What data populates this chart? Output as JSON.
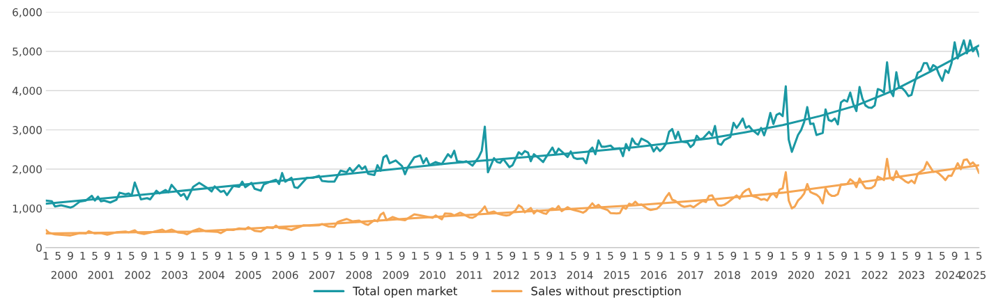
{
  "chart_data": {
    "type": "line",
    "x": [
      "2000-01",
      "2000-03",
      "2000-04",
      "2000-06",
      "2000-09",
      "2000-10",
      "2000-12",
      "2001-02",
      "2001-04",
      "2001-05",
      "2001-06",
      "2001-07",
      "2001-08",
      "2001-10",
      "2001-12",
      "2002-01",
      "2002-03",
      "2002-04",
      "2002-05",
      "2002-06",
      "2002-08",
      "2002-10",
      "2002-11",
      "2003-01",
      "2003-02",
      "2003-04",
      "2003-05",
      "2003-06",
      "2003-08",
      "2003-09",
      "2003-10",
      "2003-11",
      "2004-01",
      "2004-03",
      "2004-06",
      "2004-07",
      "2004-08",
      "2004-10",
      "2004-11",
      "2004-12",
      "2005-02",
      "2005-04",
      "2005-05",
      "2005-06",
      "2005-08",
      "2005-09",
      "2005-11",
      "2005-12",
      "2006-02",
      "2006-04",
      "2006-05",
      "2006-06",
      "2006-07",
      "2006-09",
      "2006-10",
      "2006-11",
      "2006-12",
      "2007-02",
      "2007-04",
      "2007-06",
      "2007-07",
      "2007-09",
      "2007-11",
      "2007-12",
      "2008-01",
      "2008-03",
      "2008-04",
      "2008-05",
      "2008-07",
      "2008-08",
      "2008-09",
      "2008-10",
      "2008-12",
      "2009-01",
      "2009-02",
      "2009-03",
      "2009-04",
      "2009-05",
      "2009-07",
      "2009-09",
      "2009-10",
      "2009-11",
      "2010-01",
      "2010-03",
      "2010-04",
      "2010-05",
      "2010-06",
      "2010-08",
      "2010-09",
      "2010-10",
      "2010-12",
      "2011-01",
      "2011-02",
      "2011-03",
      "2011-05",
      "2011-06",
      "2011-08",
      "2011-10",
      "2011-11",
      "2011-12",
      "2012-01",
      "2012-03",
      "2012-04",
      "2012-05",
      "2012-06",
      "2012-08",
      "2012-09",
      "2012-11",
      "2012-12",
      "2013-01",
      "2013-02",
      "2013-03",
      "2013-04",
      "2013-06",
      "2013-07",
      "2013-08",
      "2013-10",
      "2013-11",
      "2013-12",
      "2014-01",
      "2014-03",
      "2014-04",
      "2014-05",
      "2014-06",
      "2014-08",
      "2014-09",
      "2014-10",
      "2014-11",
      "2014-12",
      "2015-01",
      "2015-02",
      "2015-03",
      "2015-05",
      "2015-06",
      "2015-08",
      "2015-09",
      "2015-10",
      "2015-11",
      "2015-12",
      "2016-01",
      "2016-02",
      "2016-03",
      "2016-05",
      "2016-06",
      "2016-07",
      "2016-08",
      "2016-09",
      "2016-10",
      "2016-11",
      "2016-12",
      "2017-01",
      "2017-02",
      "2017-03",
      "2017-04",
      "2017-06",
      "2017-07",
      "2017-08",
      "2017-09",
      "2017-10",
      "2017-11",
      "2018-01",
      "2018-02",
      "2018-03",
      "2018-04",
      "2018-05",
      "2018-06",
      "2018-08",
      "2018-09",
      "2018-10",
      "2018-11",
      "2018-12",
      "2019-01",
      "2019-02",
      "2019-03",
      "2019-05",
      "2019-06",
      "2019-07",
      "2019-08",
      "2019-09",
      "2019-10",
      "2019-11",
      "2019-12",
      "2020-01",
      "2020-02",
      "2020-03",
      "2020-04",
      "2020-06",
      "2020-07",
      "2020-08",
      "2020-09",
      "2020-10",
      "2020-11",
      "2020-12",
      "2021-02",
      "2021-03",
      "2021-04",
      "2021-05",
      "2021-06",
      "2021-07",
      "2021-08",
      "2021-09",
      "2021-10",
      "2021-11",
      "2021-12",
      "2022-01",
      "2022-02",
      "2022-03",
      "2022-04",
      "2022-05",
      "2022-06",
      "2022-07",
      "2022-08",
      "2022-09",
      "2022-10",
      "2022-11",
      "2022-12",
      "2023-01",
      "2023-02",
      "2023-03",
      "2023-04",
      "2023-05",
      "2023-06",
      "2023-07",
      "2023-08",
      "2023-09",
      "2023-10",
      "2023-11",
      "2023-12",
      "2024-01",
      "2024-02",
      "2024-03",
      "2024-04",
      "2024-05",
      "2024-06",
      "2024-07",
      "2024-08",
      "2024-09",
      "2024-10",
      "2024-11",
      "2024-12",
      "2025-01",
      "2025-02",
      "2025-03",
      "2025-04",
      "2025-05"
    ],
    "series": [
      {
        "name": "Total open market",
        "color": "#1a98a3",
        "values": [
          1200,
          1180,
          1050,
          1080,
          1020,
          1050,
          1170,
          1200,
          1320,
          1200,
          1300,
          1180,
          1200,
          1150,
          1220,
          1400,
          1360,
          1380,
          1330,
          1660,
          1230,
          1260,
          1230,
          1450,
          1380,
          1470,
          1410,
          1600,
          1410,
          1320,
          1370,
          1230,
          1550,
          1650,
          1500,
          1430,
          1560,
          1420,
          1450,
          1340,
          1570,
          1550,
          1680,
          1540,
          1650,
          1500,
          1450,
          1610,
          1680,
          1730,
          1620,
          1900,
          1680,
          1780,
          1540,
          1520,
          1600,
          1780,
          1780,
          1830,
          1700,
          1680,
          1680,
          1820,
          1960,
          1920,
          2030,
          1930,
          2100,
          2000,
          2070,
          1880,
          1850,
          2100,
          1960,
          2300,
          2350,
          2150,
          2220,
          2080,
          1870,
          2060,
          2300,
          2350,
          2150,
          2280,
          2100,
          2180,
          2150,
          2130,
          2380,
          2300,
          2470,
          2200,
          2180,
          2200,
          2090,
          2300,
          2470,
          3080,
          1920,
          2280,
          2180,
          2160,
          2260,
          2050,
          2100,
          2430,
          2370,
          2460,
          2420,
          2200,
          2380,
          2250,
          2180,
          2310,
          2550,
          2380,
          2520,
          2450,
          2310,
          2450,
          2290,
          2260,
          2270,
          2150,
          2460,
          2550,
          2380,
          2730,
          2570,
          2570,
          2600,
          2520,
          2530,
          2330,
          2640,
          2480,
          2780,
          2650,
          2620,
          2780,
          2700,
          2620,
          2450,
          2560,
          2460,
          2530,
          2650,
          2950,
          3020,
          2770,
          2950,
          2700,
          2680,
          2560,
          2630,
          2850,
          2760,
          2780,
          2950,
          2850,
          3100,
          2650,
          2620,
          2740,
          2820,
          3180,
          3050,
          3160,
          3290,
          3050,
          3100,
          3010,
          2880,
          3050,
          2860,
          3100,
          3430,
          3150,
          3380,
          3420,
          3350,
          4110,
          2750,
          2440,
          2870,
          2990,
          3200,
          3580,
          3150,
          3160,
          2870,
          2920,
          3520,
          3250,
          3220,
          3290,
          3140,
          3700,
          3760,
          3720,
          3950,
          3660,
          3480,
          4090,
          3800,
          3620,
          3570,
          3560,
          3620,
          4040,
          4010,
          3950,
          4720,
          4000,
          3860,
          4470,
          4070,
          4060,
          3980,
          3860,
          3890,
          4200,
          4460,
          4500,
          4700,
          4700,
          4500,
          4650,
          4600,
          4400,
          4250,
          4520,
          4450,
          4700,
          5230,
          4820,
          5050,
          5280,
          4950,
          5280,
          5000,
          5100,
          4870
        ]
      },
      {
        "name": "Sales without presctiption",
        "color": "#f5a552",
        "x": [
          "2000-01",
          "2000-02",
          "2000-04",
          "2000-07",
          "2000-09",
          "2000-12",
          "2001-02",
          "2001-03",
          "2001-05",
          "2001-07",
          "2001-09",
          "2001-12",
          "2002-03",
          "2002-04",
          "2002-06",
          "2002-07",
          "2002-09",
          "2002-12",
          "2003-03",
          "2003-04",
          "2003-06",
          "2003-08",
          "2003-10",
          "2003-11",
          "2004-01",
          "2004-03",
          "2004-05",
          "2004-07",
          "2004-09",
          "2004-10",
          "2004-12",
          "2005-02",
          "2005-04",
          "2005-06",
          "2005-07",
          "2005-09",
          "2005-11",
          "2006-01",
          "2006-03",
          "2006-04",
          "2006-05",
          "2006-07",
          "2006-09",
          "2006-10",
          "2007-01",
          "2007-03",
          "2007-06",
          "2007-07",
          "2007-09",
          "2007-11",
          "2007-12",
          "2008-01",
          "2008-03",
          "2008-05",
          "2008-07",
          "2008-09",
          "2008-10",
          "2008-12",
          "2009-01",
          "2009-02",
          "2009-03",
          "2009-04",
          "2009-06",
          "2009-08",
          "2009-10",
          "2010-01",
          "2010-03",
          "2010-05",
          "2010-07",
          "2010-08",
          "2010-10",
          "2010-11",
          "2011-01",
          "2011-02",
          "2011-04",
          "2011-07",
          "2011-08",
          "2011-09",
          "2011-11",
          "2011-12",
          "2012-01",
          "2012-03",
          "2012-04",
          "2012-06",
          "2012-07",
          "2012-08",
          "2012-10",
          "2012-11",
          "2012-12",
          "2013-01",
          "2013-03",
          "2013-04",
          "2013-05",
          "2013-07",
          "2013-08",
          "2013-09",
          "2013-10",
          "2013-11",
          "2013-12",
          "2014-01",
          "2014-03",
          "2014-04",
          "2014-05",
          "2014-07",
          "2014-08",
          "2014-09",
          "2014-11",
          "2014-12",
          "2015-01",
          "2015-02",
          "2015-04",
          "2015-05",
          "2015-07",
          "2015-08",
          "2015-09",
          "2015-10",
          "2015-11",
          "2015-12",
          "2016-01",
          "2016-02",
          "2016-03",
          "2016-05",
          "2016-06",
          "2016-08",
          "2016-09",
          "2016-10",
          "2016-11",
          "2016-12",
          "2017-01",
          "2017-02",
          "2017-04",
          "2017-05",
          "2017-07",
          "2017-08",
          "2017-10",
          "2017-11",
          "2017-12",
          "2018-01",
          "2018-02",
          "2018-03",
          "2018-04",
          "2018-05",
          "2018-06",
          "2018-07",
          "2018-09",
          "2018-10",
          "2018-11",
          "2018-12",
          "2019-01",
          "2019-02",
          "2019-03",
          "2019-05",
          "2019-06",
          "2019-07",
          "2019-08",
          "2019-09",
          "2019-10",
          "2019-11",
          "2019-12",
          "2020-01",
          "2020-02",
          "2020-03",
          "2020-04",
          "2020-05",
          "2020-06",
          "2020-07",
          "2020-08",
          "2020-09",
          "2020-10",
          "2020-11",
          "2020-12",
          "2021-01",
          "2021-02",
          "2021-03",
          "2021-04",
          "2021-05",
          "2021-06",
          "2021-07",
          "2021-08",
          "2021-09",
          "2021-10",
          "2021-11",
          "2021-12",
          "2022-01",
          "2022-02",
          "2022-03",
          "2022-04",
          "2022-05",
          "2022-06",
          "2022-07",
          "2022-08",
          "2022-09",
          "2022-10",
          "2022-11",
          "2022-12",
          "2023-01",
          "2023-02",
          "2023-03",
          "2023-04",
          "2023-05",
          "2023-06",
          "2023-07",
          "2023-08",
          "2023-09",
          "2023-10",
          "2023-11",
          "2023-12",
          "2024-01",
          "2024-02",
          "2024-03",
          "2024-04",
          "2024-05",
          "2024-06",
          "2024-07",
          "2024-08",
          "2024-09",
          "2024-10",
          "2024-11",
          "2024-12",
          "2025-01",
          "2025-02",
          "2025-03",
          "2025-04",
          "2025-05"
        ],
        "values": [
          450,
          380,
          340,
          320,
          310,
          370,
          360,
          420,
          360,
          370,
          330,
          390,
          410,
          390,
          440,
          380,
          350,
          400,
          460,
          410,
          460,
          390,
          370,
          340,
          430,
          480,
          420,
          410,
          400,
          370,
          460,
          450,
          490,
          470,
          520,
          430,
          410,
          520,
          500,
          560,
          500,
          490,
          450,
          480,
          570,
          560,
          570,
          600,
          540,
          530,
          650,
          680,
          730,
          670,
          690,
          600,
          580,
          700,
          670,
          840,
          890,
          700,
          780,
          720,
          700,
          850,
          820,
          790,
          760,
          820,
          720,
          870,
          860,
          820,
          890,
          770,
          760,
          800,
          950,
          1050,
          880,
          920,
          870,
          830,
          820,
          830,
          950,
          1080,
          1030,
          900,
          1010,
          870,
          950,
          880,
          860,
          960,
          1000,
          970,
          1060,
          930,
          1030,
          980,
          960,
          920,
          890,
          940,
          1130,
          1040,
          1090,
          1010,
          960,
          880,
          870,
          880,
          1030,
          990,
          1120,
          1090,
          1170,
          1090,
          1100,
          990,
          960,
          990,
          1060,
          1150,
          1290,
          1390,
          1220,
          1190,
          1070,
          1040,
          1070,
          1030,
          1140,
          1190,
          1160,
          1320,
          1330,
          1200,
          1080,
          1070,
          1090,
          1140,
          1270,
          1330,
          1250,
          1390,
          1460,
          1500,
          1320,
          1270,
          1220,
          1240,
          1200,
          1330,
          1380,
          1280,
          1480,
          1510,
          1920,
          1200,
          1000,
          1050,
          1200,
          1270,
          1380,
          1620,
          1420,
          1380,
          1350,
          1280,
          1130,
          1510,
          1370,
          1320,
          1320,
          1360,
          1610,
          1610,
          1620,
          1740,
          1680,
          1540,
          1760,
          1640,
          1520,
          1510,
          1520,
          1580,
          1810,
          1770,
          1720,
          2260,
          1780,
          1720,
          1950,
          1800,
          1750,
          1690,
          1650,
          1710,
          1640,
          1880,
          1940,
          1990,
          2180,
          2060,
          1930,
          1940,
          1880,
          1810,
          1720,
          1830,
          1830,
          1990,
          2150,
          2000,
          2230,
          2250,
          2120,
          2170,
          2080,
          1900
        ]
      },
      {
        "color": "#1a98a3",
        "x": [
          "2000-01",
          "2002-01",
          "2005-01",
          "2008-01",
          "2011-01",
          "2014-01",
          "2016-01",
          "2018-01",
          "2019-01",
          "2020-01",
          "2021-01",
          "2022-01",
          "2023-01",
          "2024-01",
          "2025-05"
        ],
        "values": [
          1120,
          1290,
          1570,
          1860,
          2150,
          2380,
          2560,
          2780,
          2940,
          3120,
          3350,
          3620,
          4000,
          4480,
          5150
        ]
      },
      {
        "color": "#f5a552",
        "x": [
          "2000-01",
          "2004-01",
          "2007-01",
          "2010-01",
          "2013-01",
          "2016-01",
          "2018-01",
          "2020-01",
          "2022-01",
          "2024-01",
          "2025-05"
        ],
        "values": [
          360,
          410,
          560,
          750,
          920,
          1080,
          1220,
          1400,
          1650,
          1920,
          2100
        ]
      }
    ],
    "xlim": [
      "2000-01",
      "2025-05"
    ],
    "xticks": [
      {
        "value": "2000-01",
        "label": "1"
      },
      {
        "value": "2000-05",
        "label": "5"
      },
      {
        "value": "2000-09",
        "label": "9"
      },
      {
        "value": "2001-01",
        "label": "1"
      },
      {
        "value": "2001-05",
        "label": "5"
      },
      {
        "value": "2001-09",
        "label": "9"
      },
      {
        "value": "2002-01",
        "label": "1"
      },
      {
        "value": "2002-05",
        "label": "5"
      },
      {
        "value": "2002-09",
        "label": "9"
      },
      {
        "value": "2003-01",
        "label": "1"
      },
      {
        "value": "2003-05",
        "label": "5"
      },
      {
        "value": "2003-09",
        "label": "9"
      },
      {
        "value": "2004-01",
        "label": "1"
      },
      {
        "value": "2004-05",
        "label": "5"
      },
      {
        "value": "2004-09",
        "label": "9"
      },
      {
        "value": "2005-01",
        "label": "1"
      },
      {
        "value": "2005-05",
        "label": "5"
      },
      {
        "value": "2005-09",
        "label": "9"
      },
      {
        "value": "2006-01",
        "label": "1"
      },
      {
        "value": "2006-05",
        "label": "5"
      },
      {
        "value": "2006-09",
        "label": "9"
      },
      {
        "value": "2007-01",
        "label": "1"
      },
      {
        "value": "2007-05",
        "label": "5"
      },
      {
        "value": "2007-09",
        "label": "9"
      },
      {
        "value": "2008-01",
        "label": "1"
      },
      {
        "value": "2008-05",
        "label": "5"
      },
      {
        "value": "2008-09",
        "label": "9"
      },
      {
        "value": "2009-01",
        "label": "1"
      },
      {
        "value": "2009-05",
        "label": "5"
      },
      {
        "value": "2009-09",
        "label": "9"
      },
      {
        "value": "2010-01",
        "label": "1"
      },
      {
        "value": "2010-05",
        "label": "5"
      },
      {
        "value": "2010-09",
        "label": "9"
      },
      {
        "value": "2011-01",
        "label": "1"
      },
      {
        "value": "2011-05",
        "label": "5"
      },
      {
        "value": "2011-09",
        "label": "9"
      },
      {
        "value": "2012-01",
        "label": "1"
      },
      {
        "value": "2012-05",
        "label": "5"
      },
      {
        "value": "2012-09",
        "label": "9"
      },
      {
        "value": "2013-01",
        "label": "1"
      },
      {
        "value": "2013-05",
        "label": "5"
      },
      {
        "value": "2013-09",
        "label": "9"
      },
      {
        "value": "2014-01",
        "label": "1"
      },
      {
        "value": "2014-05",
        "label": "5"
      },
      {
        "value": "2014-09",
        "label": "9"
      },
      {
        "value": "2015-01",
        "label": "1"
      },
      {
        "value": "2015-05",
        "label": "5"
      },
      {
        "value": "2015-09",
        "label": "9"
      },
      {
        "value": "2016-01",
        "label": "1"
      },
      {
        "value": "2016-05",
        "label": "5"
      },
      {
        "value": "2016-09",
        "label": "9"
      },
      {
        "value": "2017-01",
        "label": "1"
      },
      {
        "value": "2017-05",
        "label": "5"
      },
      {
        "value": "2017-09",
        "label": "9"
      },
      {
        "value": "2018-01",
        "label": "1"
      },
      {
        "value": "2018-05",
        "label": "5"
      },
      {
        "value": "2018-09",
        "label": "9"
      },
      {
        "value": "2019-01",
        "label": "1"
      },
      {
        "value": "2019-05",
        "label": "5"
      },
      {
        "value": "2019-09",
        "label": "9"
      },
      {
        "value": "2020-01",
        "label": "1"
      },
      {
        "value": "2020-05",
        "label": "5"
      },
      {
        "value": "2020-09",
        "label": "9"
      },
      {
        "value": "2021-01",
        "label": "1"
      },
      {
        "value": "2021-05",
        "label": "5"
      },
      {
        "value": "2021-09",
        "label": "9"
      },
      {
        "value": "2022-01",
        "label": "1"
      },
      {
        "value": "2022-05",
        "label": "5"
      },
      {
        "value": "2022-09",
        "label": "9"
      },
      {
        "value": "2023-01",
        "label": "1"
      },
      {
        "value": "2023-05",
        "label": "5"
      },
      {
        "value": "2023-09",
        "label": "9"
      },
      {
        "value": "2024-01",
        "label": "1"
      },
      {
        "value": "2024-05",
        "label": "5"
      },
      {
        "value": "2024-09",
        "label": "9"
      },
      {
        "value": "2025-01",
        "label": "1"
      },
      {
        "value": "2025-05",
        "label": "5"
      }
    ],
    "x2lim": [
      "2000-01",
      "2025-05"
    ],
    "x2ticks": [
      {
        "value": "2000-07",
        "label": "2000"
      },
      {
        "value": "2001-07",
        "label": "2001"
      },
      {
        "value": "2002-07",
        "label": "2002"
      },
      {
        "value": "2003-07",
        "label": "2003"
      },
      {
        "value": "2004-07",
        "label": "2004"
      },
      {
        "value": "2005-07",
        "label": "2005"
      },
      {
        "value": "2006-07",
        "label": "2006"
      },
      {
        "value": "2007-07",
        "label": "2007"
      },
      {
        "value": "2008-07",
        "label": "2008"
      },
      {
        "value": "2009-07",
        "label": "2009"
      },
      {
        "value": "2010-07",
        "label": "2010"
      },
      {
        "value": "2011-07",
        "label": "2011"
      },
      {
        "value": "2012-07",
        "label": "2012"
      },
      {
        "value": "2013-07",
        "label": "2013"
      },
      {
        "value": "2014-07",
        "label": "2014"
      },
      {
        "value": "2015-07",
        "label": "2015"
      },
      {
        "value": "2016-07",
        "label": "2016"
      },
      {
        "value": "2017-07",
        "label": "2017"
      },
      {
        "value": "2018-07",
        "label": "2018"
      },
      {
        "value": "2019-07",
        "label": "2019"
      },
      {
        "value": "2020-07",
        "label": "2020"
      },
      {
        "value": "2021-07",
        "label": "2021"
      },
      {
        "value": "2022-07",
        "label": "2022"
      },
      {
        "value": "2023-07",
        "label": "2023"
      },
      {
        "value": "2024-07",
        "label": "2024"
      },
      {
        "value": "2025-03",
        "label": "2025"
      }
    ],
    "ylim": [
      0,
      6000
    ],
    "yticks": [
      0,
      {
        "value": 1000,
        "label": "1,000"
      },
      {
        "value": 2000,
        "label": "2,000"
      },
      {
        "value": 3000,
        "label": "3,000"
      },
      {
        "value": 4000,
        "label": "4,000"
      },
      {
        "value": 5000,
        "label": "5,000"
      },
      {
        "value": 6000,
        "label": "6,000"
      }
    ],
    "grid": "y",
    "legend": "bottom",
    "marker": "none",
    "line_style": "solid"
  }
}
